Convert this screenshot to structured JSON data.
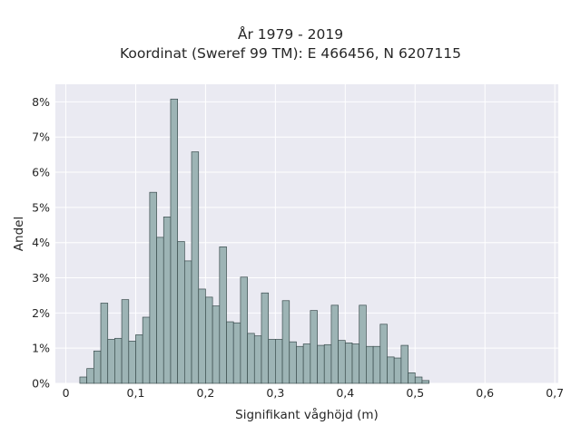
{
  "chart_data": {
    "type": "bar",
    "title": "År 1979 - 2019",
    "subtitle": "Koordinat (Sweref 99 TM): E 466456, N 6207115",
    "xlabel": "Signifikant våghöjd (m)",
    "ylabel": "Andel",
    "xlim": [
      -0.015,
      0.705
    ],
    "ylim": [
      0,
      8.5
    ],
    "x_ticks": [
      0,
      0.1,
      0.2,
      0.3,
      0.4,
      0.5,
      0.6,
      0.7
    ],
    "x_tick_labels": [
      "0",
      "0,1",
      "0,2",
      "0,3",
      "0,4",
      "0,5",
      "0,6",
      "0,7"
    ],
    "y_ticks": [
      0,
      1,
      2,
      3,
      4,
      5,
      6,
      7,
      8
    ],
    "y_tick_labels": [
      "0%",
      "1%",
      "2%",
      "3%",
      "4%",
      "5%",
      "6%",
      "7%",
      "8%"
    ],
    "grid": true,
    "bin_width": 0.01,
    "bin_start": 0.02,
    "values": [
      0.18,
      0.42,
      0.92,
      2.28,
      1.25,
      1.28,
      2.38,
      1.2,
      1.38,
      1.88,
      5.43,
      4.15,
      4.73,
      8.08,
      4.03,
      3.48,
      6.58,
      2.68,
      2.45,
      2.2,
      3.88,
      1.75,
      1.72,
      3.02,
      1.42,
      1.35,
      2.57,
      1.25,
      1.25,
      2.35,
      1.18,
      1.05,
      1.12,
      2.07,
      1.08,
      1.1,
      2.22,
      1.22,
      1.15,
      1.12,
      2.22,
      1.05,
      1.05,
      1.68,
      0.75,
      0.72,
      1.08,
      0.3,
      0.18,
      0.08
    ],
    "colors": {
      "bar_fill": "#9db4b5",
      "bar_edge": "#3b4d4e",
      "plot_bg": "#eaeaf2",
      "grid": "#ffffff",
      "text": "#262626"
    }
  }
}
